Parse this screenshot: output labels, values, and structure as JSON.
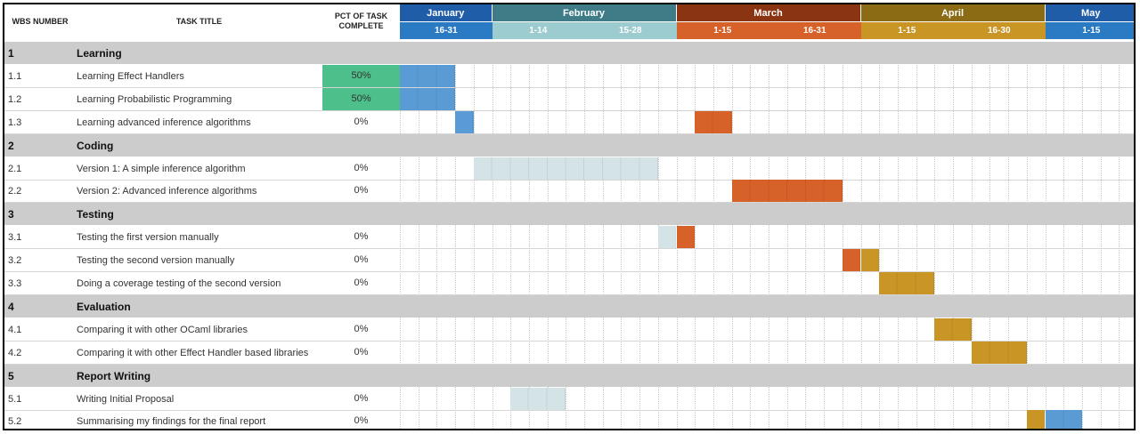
{
  "header": {
    "wbs": "WBS NUMBER",
    "title": "TASK TITLE",
    "pct": "PCT OF TASK COMPLETE",
    "months": [
      {
        "label": "January",
        "color": "#1f5da8"
      },
      {
        "label": "February",
        "color": "#3f7c88"
      },
      {
        "label": "March",
        "color": "#8b3412"
      },
      {
        "label": "April",
        "color": "#8b6b14"
      },
      {
        "label": "May",
        "color": "#1f5da8"
      }
    ],
    "periods": [
      {
        "label": "16-31",
        "color": "#2a7bc4"
      },
      {
        "label": "1-14",
        "color": "#9ccbd0"
      },
      {
        "label": "15-28",
        "color": "#9ccbd0"
      },
      {
        "label": "1-15",
        "color": "#d6622a"
      },
      {
        "label": "16-31",
        "color": "#d6622a"
      },
      {
        "label": "1-15",
        "color": "#c99525"
      },
      {
        "label": "16-30",
        "color": "#c99525"
      },
      {
        "label": "1-15",
        "color": "#2a7bc4"
      }
    ]
  },
  "rows": [
    {
      "type": "section",
      "wbs": "1",
      "title": "Learning"
    },
    {
      "type": "task",
      "wbs": "1.1",
      "title": "Learning Effect Handlers",
      "pct": "50%",
      "highlight": true,
      "bars": [
        {
          "start": 0,
          "len": 3,
          "color": "#5b9bd5"
        }
      ]
    },
    {
      "type": "task",
      "wbs": "1.2",
      "title": "Learning Probabilistic Programming",
      "pct": "50%",
      "highlight": true,
      "bars": [
        {
          "start": 0,
          "len": 3,
          "color": "#5b9bd5"
        }
      ]
    },
    {
      "type": "task",
      "wbs": "1.3",
      "title": "Learning advanced inference algorithms",
      "pct": "0%",
      "bars": [
        {
          "start": 3,
          "len": 1,
          "color": "#5b9bd5"
        },
        {
          "start": 16,
          "len": 2,
          "color": "#d6622a"
        }
      ]
    },
    {
      "type": "section",
      "wbs": "2",
      "title": "Coding"
    },
    {
      "type": "task",
      "wbs": "2.1",
      "title": "Version 1: A simple inference algorithm",
      "pct": "0%",
      "bars": [
        {
          "start": 4,
          "len": 10,
          "color": "#d4e4e6"
        }
      ]
    },
    {
      "type": "task",
      "wbs": "2.2",
      "title": "Version 2: Advanced inference algorithms",
      "pct": "0%",
      "bars": [
        {
          "start": 18,
          "len": 6,
          "color": "#d6622a"
        }
      ]
    },
    {
      "type": "section",
      "wbs": "3",
      "title": "Testing"
    },
    {
      "type": "task",
      "wbs": "3.1",
      "title": "Testing the first version manually",
      "pct": "0%",
      "bars": [
        {
          "start": 14,
          "len": 1,
          "color": "#d4e4e6"
        },
        {
          "start": 15,
          "len": 1,
          "color": "#d6622a"
        }
      ]
    },
    {
      "type": "task",
      "wbs": "3.2",
      "title": "Testing the second version manually",
      "pct": "0%",
      "bars": [
        {
          "start": 24,
          "len": 1,
          "color": "#d6622a"
        },
        {
          "start": 25,
          "len": 1,
          "color": "#c99525"
        }
      ]
    },
    {
      "type": "task",
      "wbs": "3.3",
      "title": "Doing a coverage testing of the second version",
      "pct": "0%",
      "bars": [
        {
          "start": 26,
          "len": 3,
          "color": "#c99525"
        }
      ]
    },
    {
      "type": "section",
      "wbs": "4",
      "title": "Evaluation"
    },
    {
      "type": "task",
      "wbs": "4.1",
      "title": "Comparing it with other OCaml libraries",
      "pct": "0%",
      "bars": [
        {
          "start": 29,
          "len": 2,
          "color": "#c99525"
        }
      ]
    },
    {
      "type": "task",
      "wbs": "4.2",
      "title": "Comparing it with other Effect Handler based libraries",
      "pct": "0%",
      "bars": [
        {
          "start": 31,
          "len": 3,
          "color": "#c99525"
        }
      ]
    },
    {
      "type": "section",
      "wbs": "5",
      "title": "Report Writing"
    },
    {
      "type": "task",
      "wbs": "5.1",
      "title": "Writing Initial Proposal",
      "pct": "0%",
      "bars": [
        {
          "start": 6,
          "len": 3,
          "color": "#d4e4e6"
        }
      ]
    },
    {
      "type": "task",
      "wbs": "5.2",
      "title": "Summarising my findings for the final report",
      "pct": "0%",
      "bars": [
        {
          "start": 34,
          "len": 1,
          "color": "#c99525"
        },
        {
          "start": 35,
          "len": 2,
          "color": "#5b9bd5"
        }
      ]
    }
  ],
  "colors": {
    "section_bg": "#cccccc",
    "pct_highlight": "#4dbf8a"
  }
}
